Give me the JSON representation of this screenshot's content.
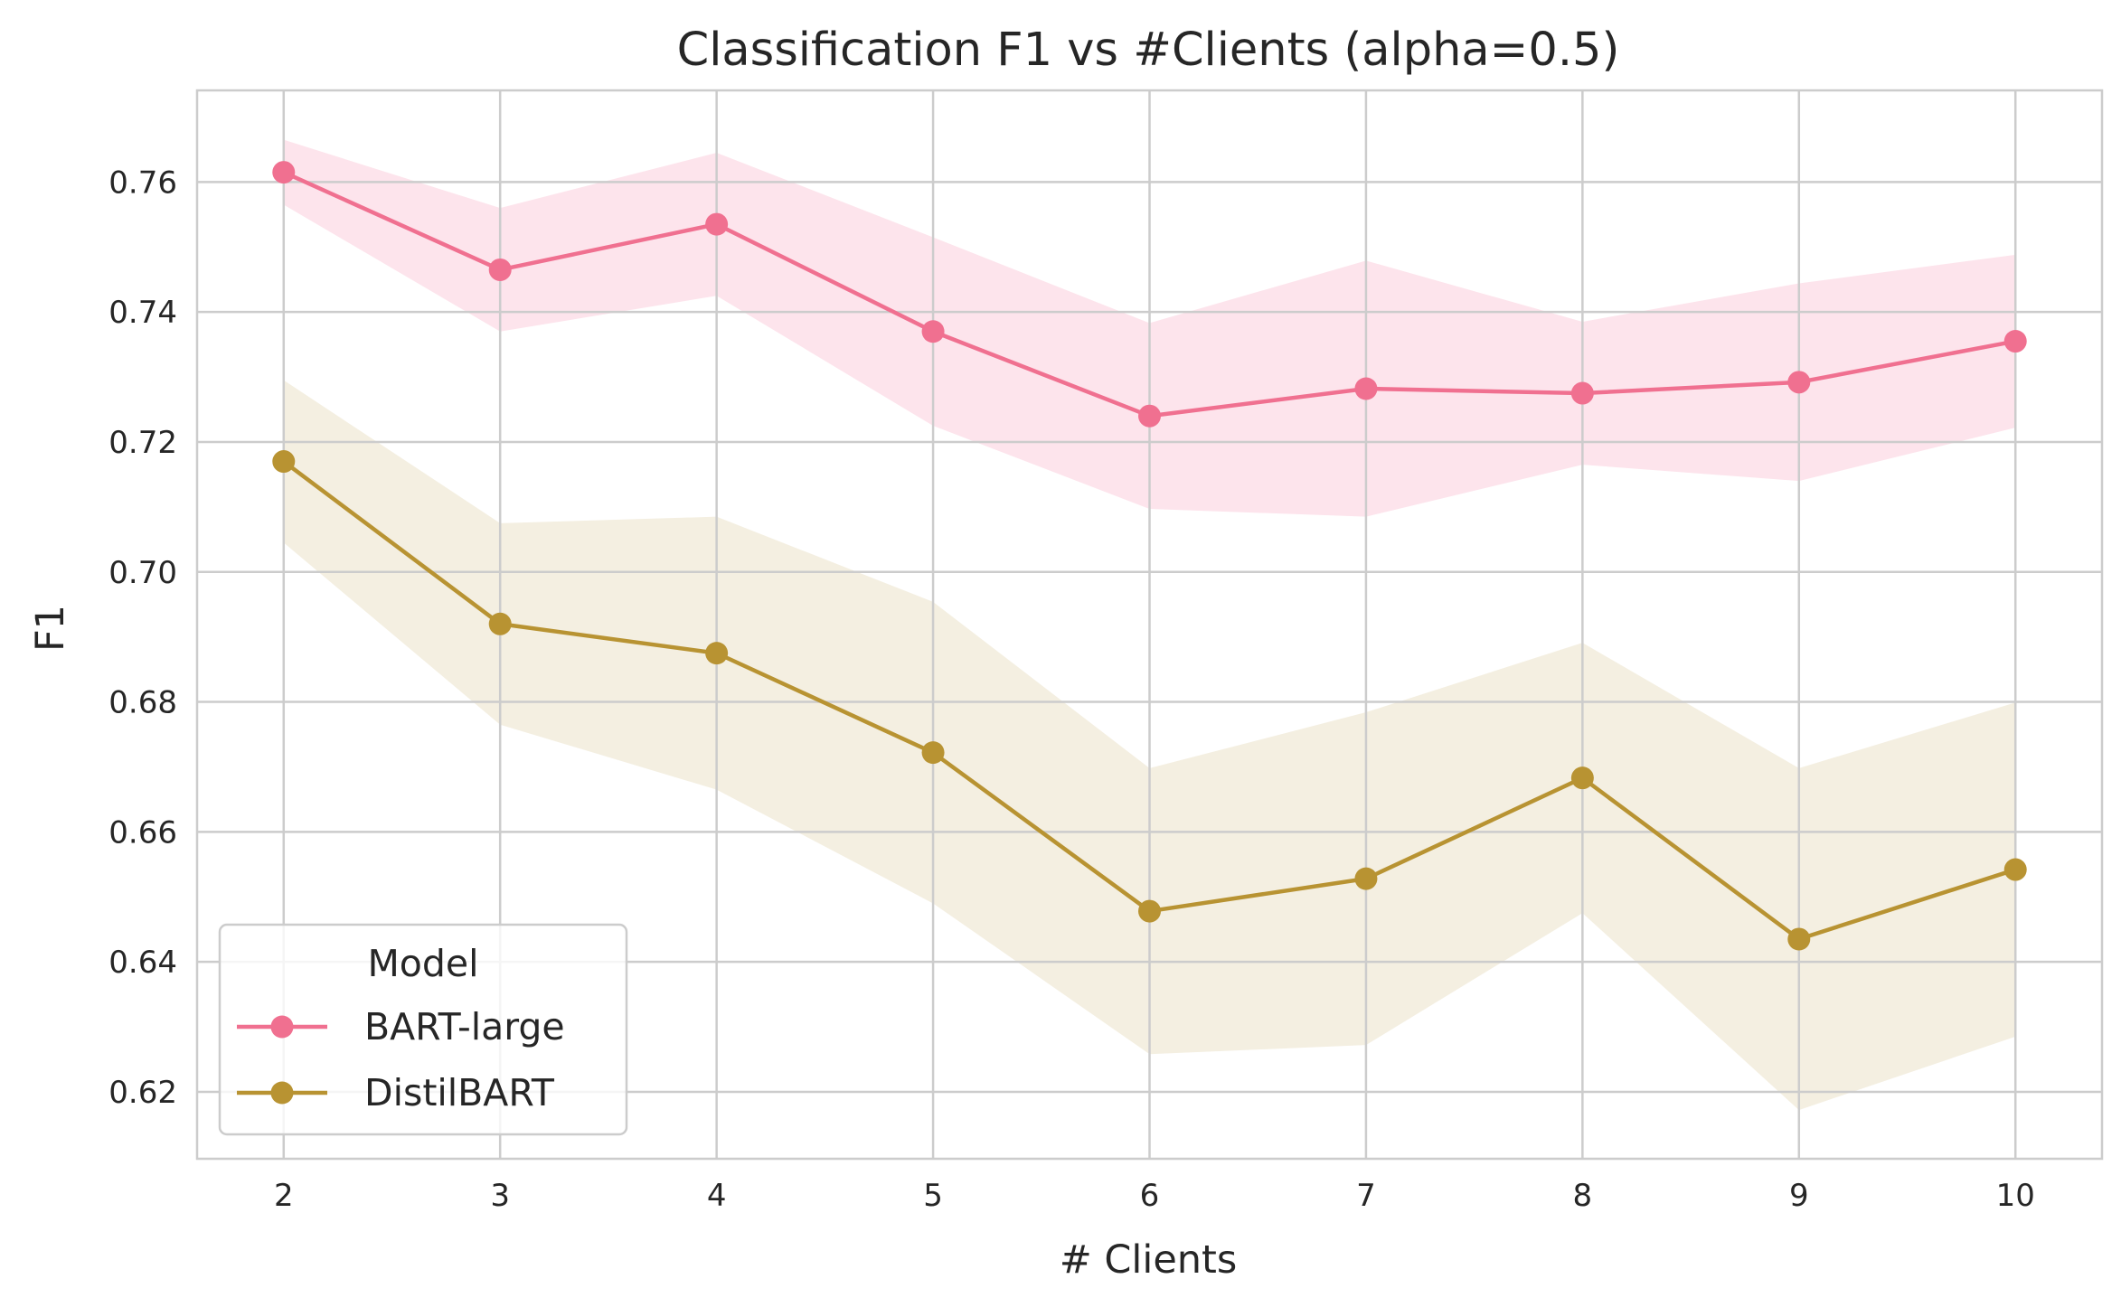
{
  "chart_data": {
    "type": "line",
    "title": "Classification F1 vs #Clients (alpha=0.5)",
    "xlabel": "# Clients",
    "ylabel": "F1",
    "x": [
      2,
      3,
      4,
      5,
      6,
      7,
      8,
      9,
      10
    ],
    "xlim": [
      1.6,
      10.4
    ],
    "ylim": [
      0.6097,
      0.7741
    ],
    "yticks": [
      0.62,
      0.64,
      0.66,
      0.68,
      0.7,
      0.72,
      0.74,
      0.76
    ],
    "ytick_labels": [
      "0.62",
      "0.64",
      "0.66",
      "0.68",
      "0.70",
      "0.72",
      "0.74",
      "0.76"
    ],
    "grid": true,
    "legend": {
      "title": "Model",
      "placement": "lower-left"
    },
    "series": [
      {
        "name": "BART-large",
        "color": "#f07090",
        "band_color": "#fde4ec",
        "values": [
          0.7615,
          0.7465,
          0.7535,
          0.737,
          0.724,
          0.7282,
          0.7275,
          0.7292,
          0.7355
        ],
        "lower": [
          0.7565,
          0.737,
          0.7425,
          0.7225,
          0.7097,
          0.7085,
          0.7165,
          0.714,
          0.7222
        ],
        "upper": [
          0.7665,
          0.756,
          0.7645,
          0.7515,
          0.7383,
          0.7479,
          0.7385,
          0.7444,
          0.7488
        ]
      },
      {
        "name": "DistilBART",
        "color": "#b89332",
        "band_color": "#f4efe1",
        "values": [
          0.717,
          0.692,
          0.6875,
          0.6722,
          0.6478,
          0.6528,
          0.6683,
          0.6435,
          0.6542
        ],
        "lower": [
          0.7045,
          0.6765,
          0.6665,
          0.649,
          0.6258,
          0.6272,
          0.6475,
          0.6172,
          0.6285
        ],
        "upper": [
          0.7295,
          0.7075,
          0.7085,
          0.6954,
          0.6698,
          0.6784,
          0.6891,
          0.6698,
          0.6799
        ]
      }
    ]
  }
}
